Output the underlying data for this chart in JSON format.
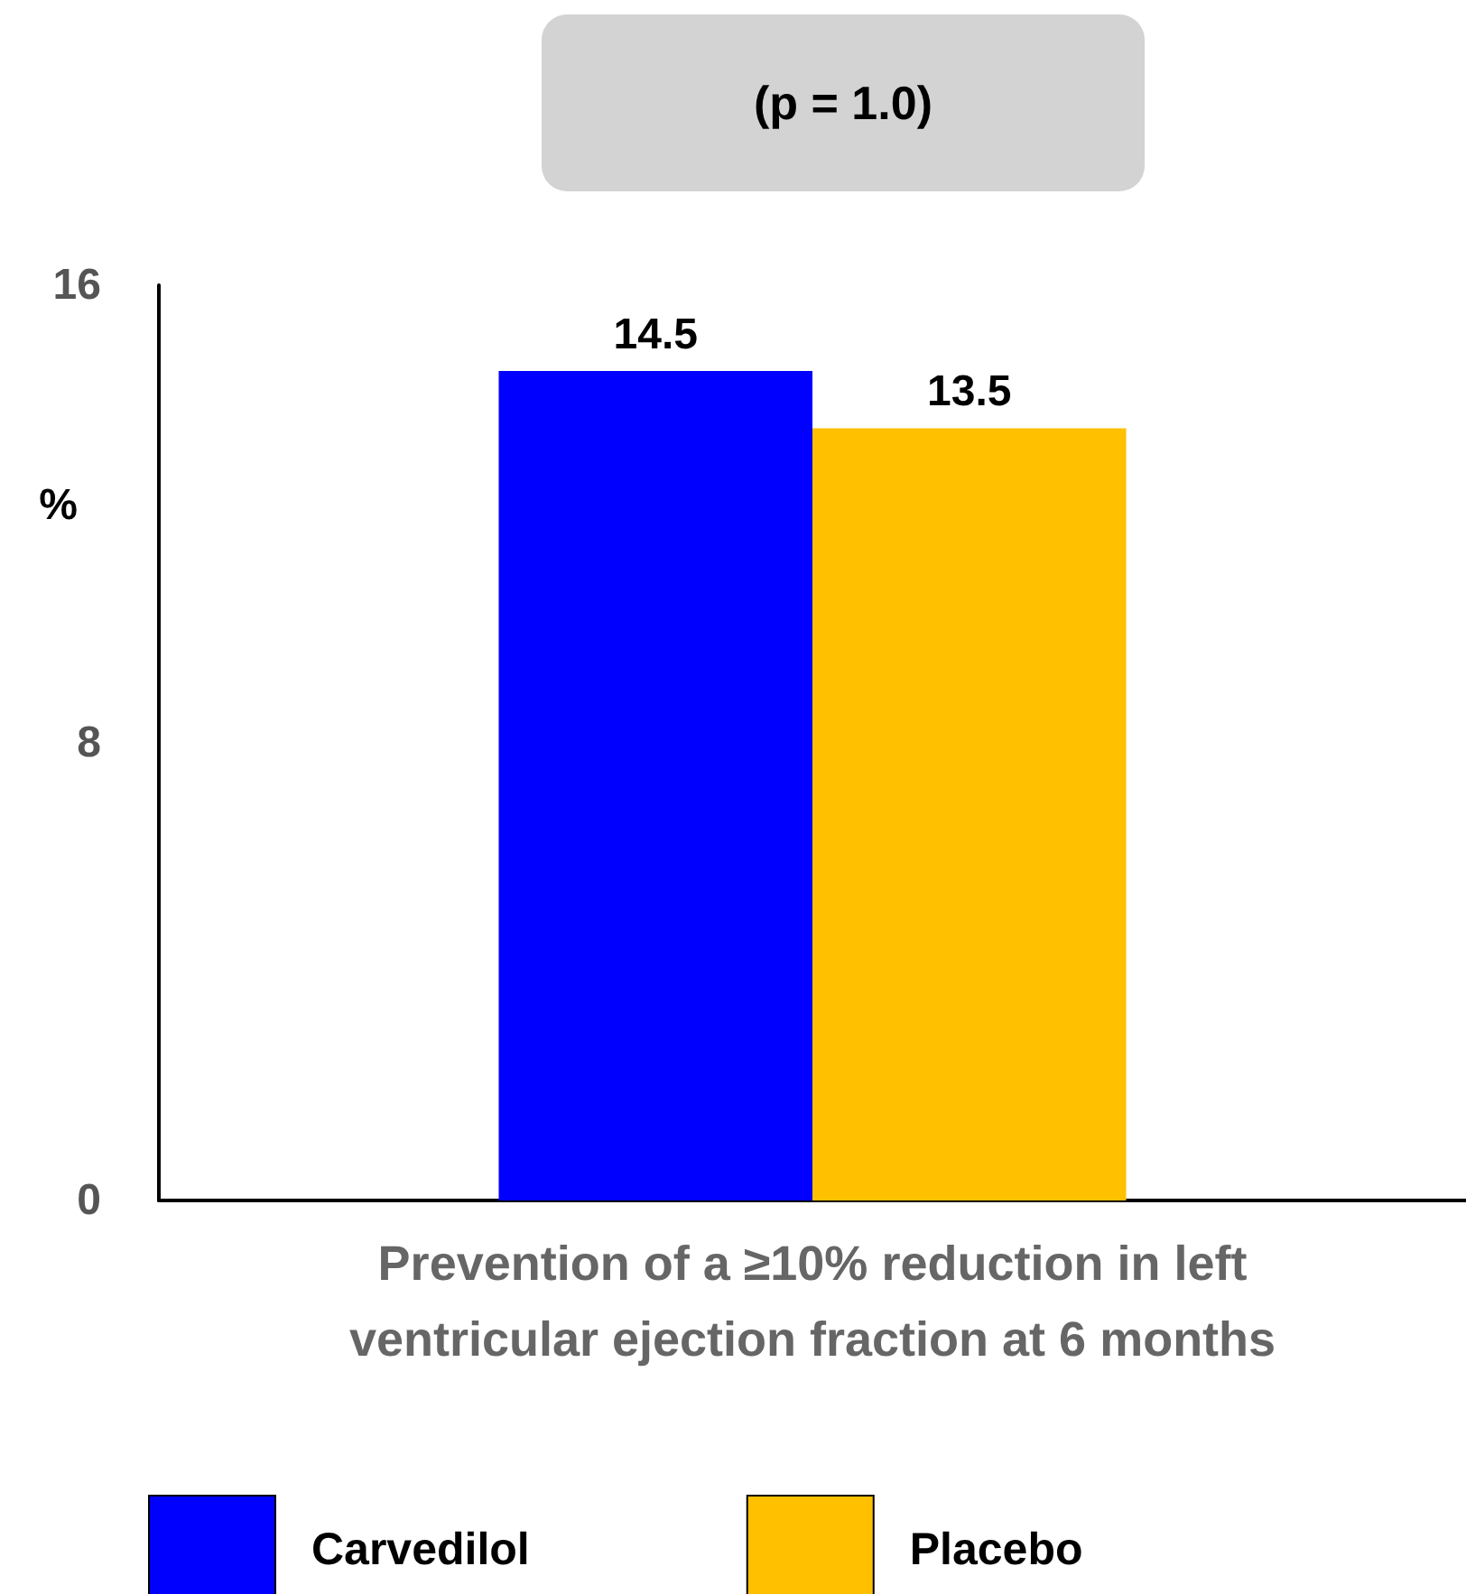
{
  "chart_data": {
    "type": "bar",
    "xlabel": "Prevention of a ≥10% reduction in left ventricular ejection fraction at 6 months",
    "ylabel": "%",
    "annotations": [
      "(p = 1.0)"
    ],
    "categories": [
      null
    ],
    "series": [
      {
        "name": "Carvedilol",
        "color": "#0000ff",
        "values": [
          14.5
        ]
      },
      {
        "name": "Placebo",
        "color": "#ffc000",
        "values": [
          13.5
        ]
      }
    ],
    "ylim": [
      0,
      16
    ],
    "yticks": [
      0,
      8,
      16
    ],
    "grid": false,
    "legend": "bottom",
    "data_labels": true
  }
}
